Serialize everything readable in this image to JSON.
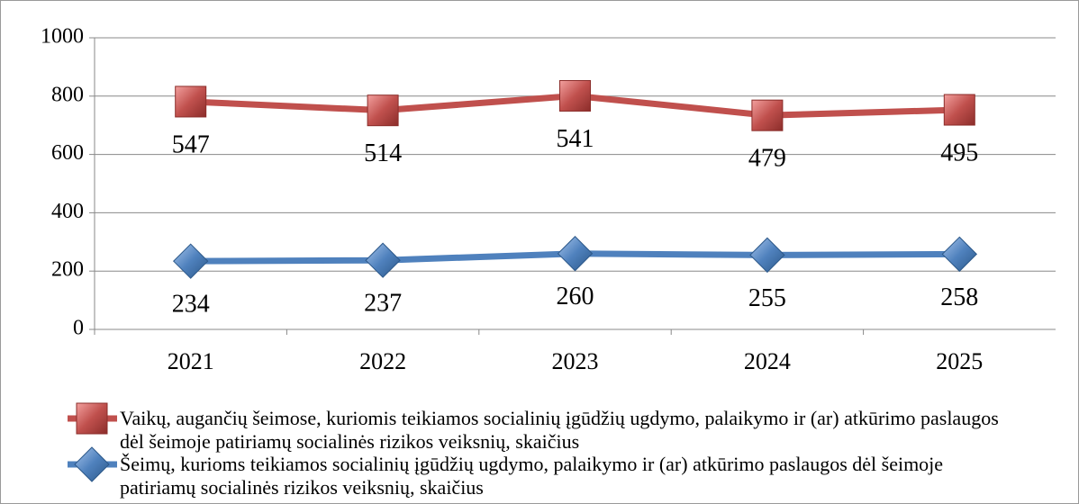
{
  "chart_data": {
    "type": "line",
    "stacked": true,
    "categories": [
      "2021",
      "2022",
      "2023",
      "2024",
      "2025"
    ],
    "series": [
      {
        "name": "Vaikų, augančių  šeimose, kuriomis teikiamos socialinių įgūdžių ugdymo, palaikymo ir (ar) atkūrimo paslaugos dėl šeimoje patiriamų socialinės rizikos veiksnių, skaičius",
        "color": "#c0504d",
        "marker": "square",
        "values": [
          547,
          514,
          541,
          479,
          495
        ]
      },
      {
        "name": "Šeimų, kurioms teikiamos socialinių įgūdžių ugdymo, palaikymo ir (ar) atkūrimo paslaugos dėl šeimoje patiriamų socialinės rizikos veiksnių, skaičius",
        "color": "#4f81bd",
        "marker": "diamond",
        "values": [
          234,
          237,
          260,
          255,
          258
        ]
      }
    ],
    "ylim": [
      0,
      1000
    ],
    "yticks": [
      0,
      200,
      400,
      600,
      800,
      1000
    ],
    "grid": true,
    "legend": "bottom"
  }
}
